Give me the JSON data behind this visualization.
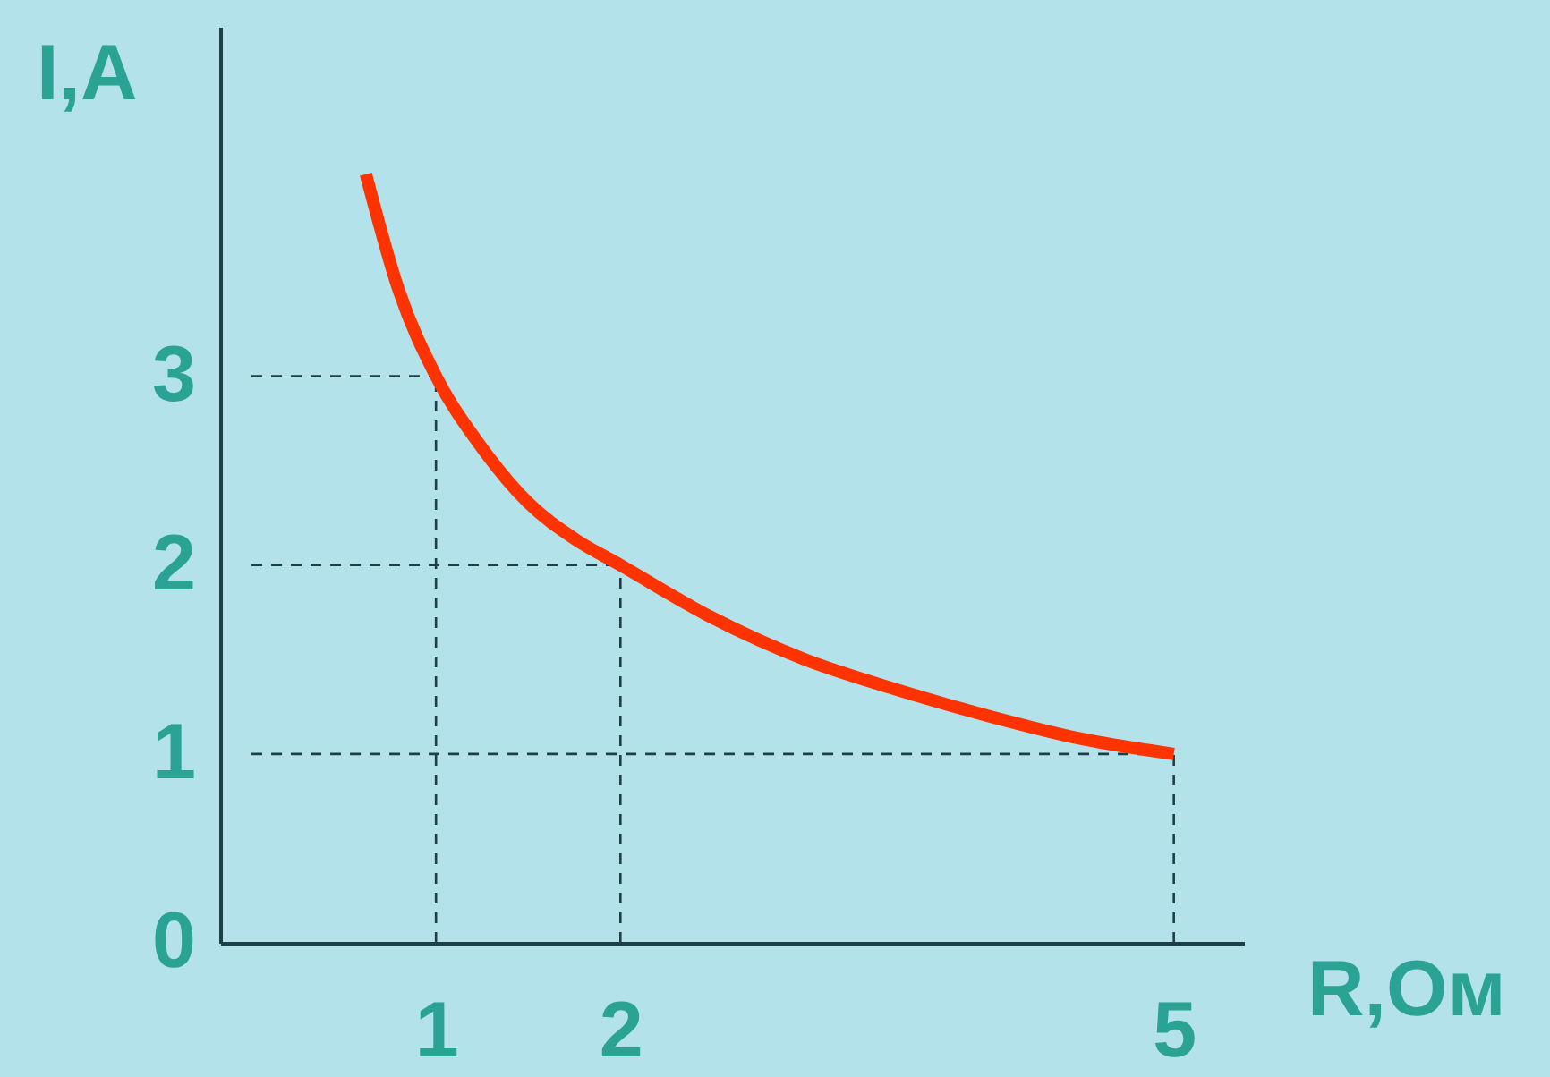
{
  "chart_data": {
    "type": "line",
    "xlabel": "R,Ом",
    "ylabel": "I,A",
    "x": [
      0.62,
      0.8,
      1,
      1.25,
      1.5,
      1.75,
      2,
      2.5,
      3,
      3.5,
      4,
      4.5,
      5
    ],
    "series": [
      {
        "color": "#ff3300",
        "values": [
          4.07,
          3.45,
          3,
          2.62,
          2.33,
          2.14,
          2,
          1.72,
          1.5,
          1.34,
          1.2,
          1.08,
          1
        ]
      }
    ],
    "xlim": [
      -0.17,
      5.38
    ],
    "xticks": [
      1,
      2,
      5
    ],
    "ylim": [
      0,
      4.85
    ],
    "yticks": [
      0,
      1,
      2,
      3
    ],
    "grid": false,
    "marker": "none",
    "line_style": "solid",
    "ref_lines": [
      {
        "axis": "x",
        "value": 1,
        "line_style": "dashed"
      },
      {
        "axis": "x",
        "value": 2,
        "line_style": "dashed"
      },
      {
        "axis": "x",
        "value": 5,
        "line_style": "dashed"
      },
      {
        "axis": "y",
        "value": 1,
        "line_style": "dashed"
      },
      {
        "axis": "y",
        "value": 2,
        "line_style": "dashed"
      },
      {
        "axis": "y",
        "value": 3,
        "line_style": "dashed"
      }
    ]
  }
}
